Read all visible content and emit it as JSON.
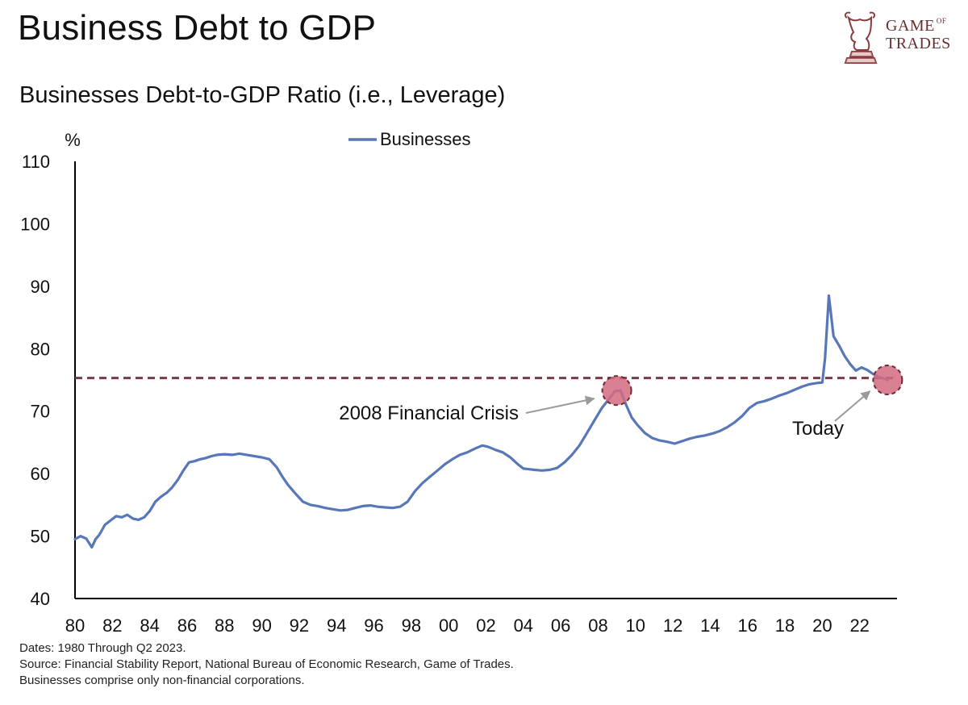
{
  "header": {
    "title": "Business Debt to GDP",
    "subtitle": "Businesses Debt-to-GDP Ratio (i.e., Leverage)"
  },
  "logo": {
    "line1": "GAME",
    "of": "OF",
    "line2": "TRADES",
    "icon": "bull-chess-knight-icon",
    "color": "#6b2e2e"
  },
  "footer": {
    "dates": "Dates: 1980 Through Q2 2023.",
    "source": "Source: Financial Stability Report, National Bureau of Economic Research, Game of Trades.",
    "note": "Businesses comprise only non-financial corporations."
  },
  "chart_data": {
    "type": "line",
    "ylabel": "%",
    "ylim": [
      40,
      110
    ],
    "yticks": [
      40,
      50,
      60,
      70,
      80,
      90,
      100,
      110
    ],
    "xlim": [
      1980,
      2024
    ],
    "xticks": [
      1980,
      1982,
      1984,
      1986,
      1988,
      1990,
      1992,
      1994,
      1996,
      1998,
      2000,
      2002,
      2004,
      2006,
      2008,
      2010,
      2012,
      2014,
      2016,
      2018,
      2020,
      2022
    ],
    "xtick_labels": [
      "80",
      "82",
      "84",
      "86",
      "88",
      "90",
      "92",
      "94",
      "96",
      "98",
      "00",
      "02",
      "04",
      "06",
      "08",
      "10",
      "12",
      "14",
      "16",
      "18",
      "20",
      "22"
    ],
    "legend": {
      "position": "top",
      "entries": [
        "Businesses"
      ]
    },
    "series": [
      {
        "name": "Businesses",
        "color": "#5877b8",
        "x": [
          1980.0,
          1980.3,
          1980.6,
          1980.9,
          1981.1,
          1981.3,
          1981.6,
          1981.9,
          1982.2,
          1982.5,
          1982.8,
          1983.1,
          1983.4,
          1983.7,
          1984.0,
          1984.3,
          1984.6,
          1984.9,
          1985.2,
          1985.5,
          1985.8,
          1986.1,
          1986.4,
          1986.7,
          1987.0,
          1987.3,
          1987.6,
          1988.0,
          1988.4,
          1988.8,
          1989.2,
          1989.6,
          1990.0,
          1990.4,
          1990.8,
          1991.1,
          1991.4,
          1991.8,
          1992.2,
          1992.6,
          1993.0,
          1993.4,
          1993.8,
          1994.2,
          1994.6,
          1995.0,
          1995.4,
          1995.8,
          1996.2,
          1996.6,
          1997.0,
          1997.4,
          1997.8,
          1998.2,
          1998.6,
          1999.0,
          1999.4,
          1999.8,
          2000.2,
          2000.6,
          2001.0,
          2001.4,
          2001.8,
          2002.1,
          2002.5,
          2002.9,
          2003.3,
          2003.7,
          2004.0,
          2004.3,
          2004.6,
          2005.0,
          2005.4,
          2005.8,
          2006.2,
          2006.6,
          2007.0,
          2007.4,
          2007.8,
          2008.2,
          2008.6,
          2008.9,
          2009.2,
          2009.5,
          2009.8,
          2010.1,
          2010.5,
          2010.9,
          2011.3,
          2011.7,
          2012.1,
          2012.5,
          2012.9,
          2013.3,
          2013.7,
          2014.1,
          2014.5,
          2014.9,
          2015.3,
          2015.7,
          2016.1,
          2016.5,
          2016.9,
          2017.3,
          2017.7,
          2018.1,
          2018.5,
          2018.9,
          2019.3,
          2019.7,
          2020.0,
          2020.15,
          2020.35,
          2020.6,
          2020.9,
          2021.2,
          2021.5,
          2021.8,
          2022.1,
          2022.4,
          2022.7,
          2023.0,
          2023.5
        ],
        "values": [
          49.5,
          50.0,
          49.6,
          48.2,
          49.5,
          50.2,
          51.8,
          52.5,
          53.2,
          53.0,
          53.4,
          52.8,
          52.6,
          53.0,
          54.0,
          55.5,
          56.3,
          56.9,
          57.8,
          59.0,
          60.5,
          61.8,
          62.0,
          62.3,
          62.5,
          62.8,
          63.0,
          63.1,
          63.0,
          63.2,
          63.0,
          62.8,
          62.6,
          62.3,
          61.0,
          59.5,
          58.2,
          56.8,
          55.5,
          55.0,
          54.8,
          54.5,
          54.3,
          54.1,
          54.2,
          54.5,
          54.8,
          54.9,
          54.7,
          54.6,
          54.5,
          54.7,
          55.5,
          57.2,
          58.5,
          59.5,
          60.5,
          61.5,
          62.3,
          63.0,
          63.4,
          64.0,
          64.5,
          64.3,
          63.8,
          63.4,
          62.6,
          61.5,
          60.8,
          60.7,
          60.6,
          60.5,
          60.6,
          60.9,
          61.8,
          63.0,
          64.5,
          66.5,
          68.5,
          70.5,
          72.0,
          73.2,
          73.3,
          71.0,
          69.0,
          67.8,
          66.5,
          65.7,
          65.3,
          65.1,
          64.8,
          65.2,
          65.6,
          65.9,
          66.1,
          66.4,
          66.8,
          67.4,
          68.2,
          69.2,
          70.5,
          71.3,
          71.6,
          72.0,
          72.5,
          72.9,
          73.4,
          73.9,
          74.3,
          74.5,
          74.6,
          78.5,
          88.5,
          82.0,
          80.5,
          78.8,
          77.5,
          76.5,
          77.0,
          76.6,
          76.0,
          75.5,
          75.0
        ]
      }
    ],
    "reference_line": {
      "value": 75.3,
      "style": "dashed",
      "color": "#7a3a44"
    },
    "annotations": [
      {
        "text": "2008 Financial Crisis",
        "x": 2009.0,
        "y": 73.3
      },
      {
        "text": "Today",
        "x": 2023.5,
        "y": 75.0
      }
    ],
    "marker_color": "#d46a80"
  }
}
